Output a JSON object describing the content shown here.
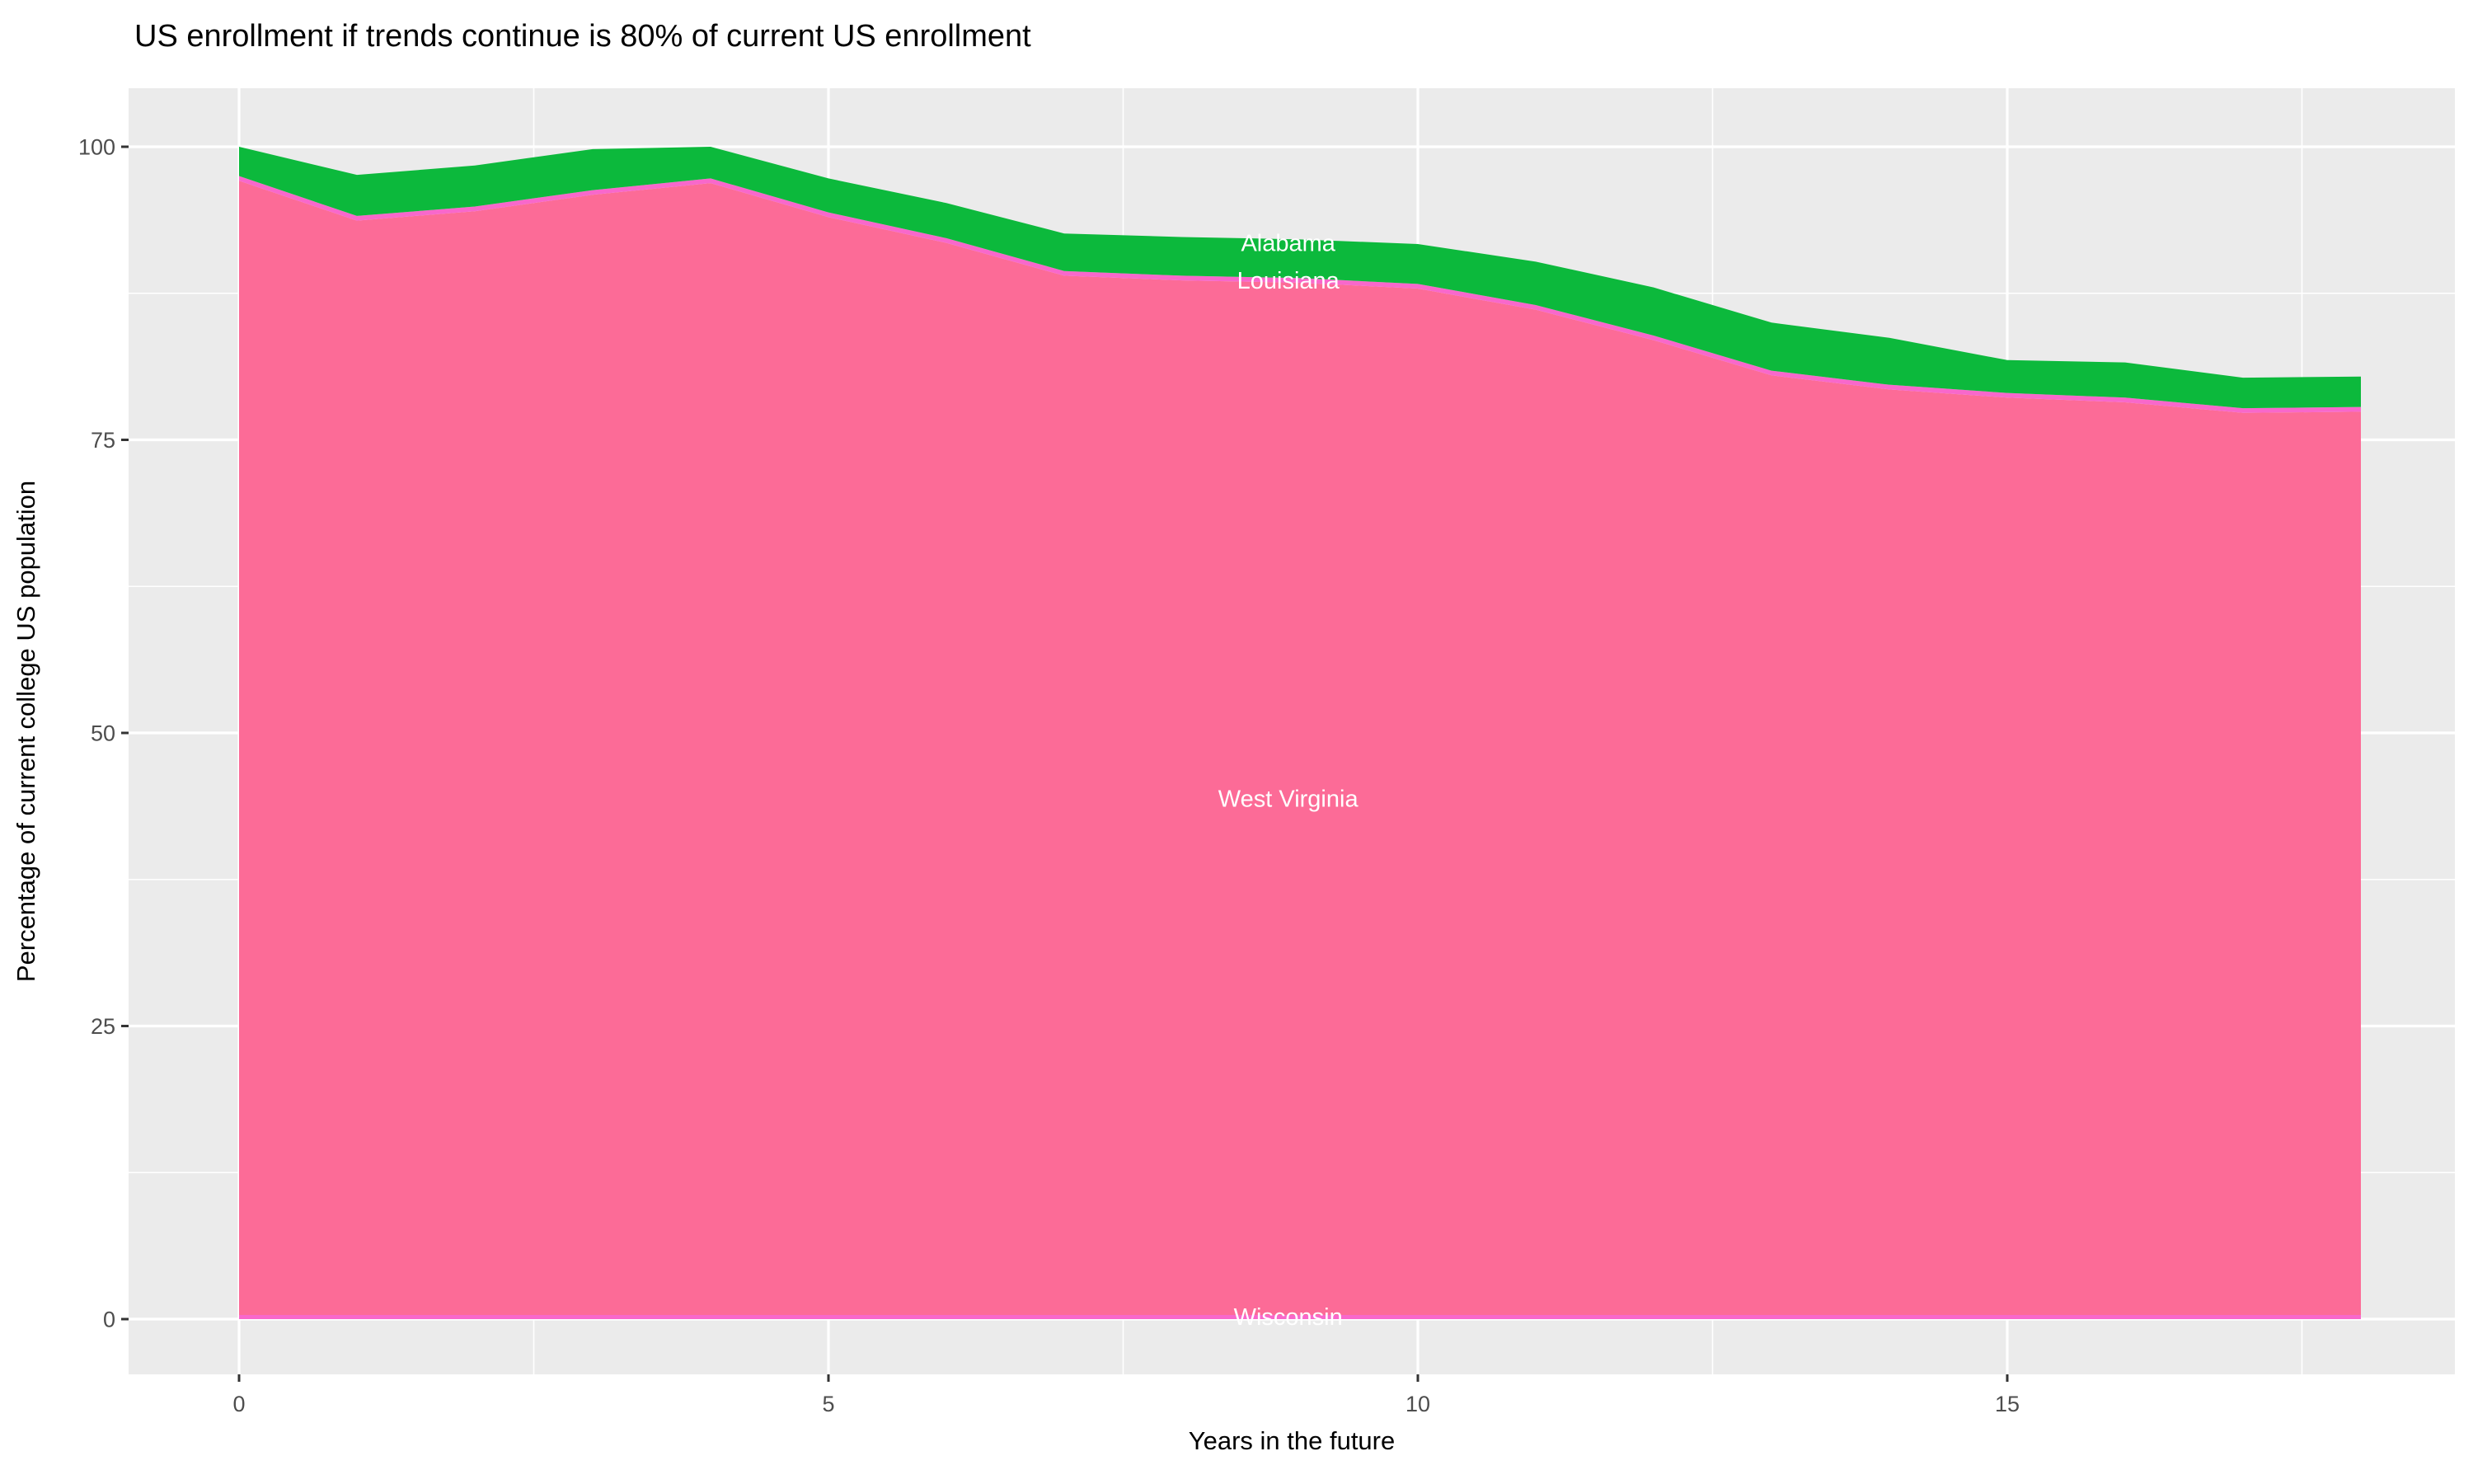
{
  "title": "US enrollment if trends continue is 80% of current US enrollment",
  "chart_data": {
    "type": "area",
    "stacked": true,
    "title": "US enrollment if trends continue is 80% of current US enrollment",
    "xlabel": "Years in the future",
    "ylabel": "Percentage of current college US population",
    "x": [
      0,
      1,
      2,
      3,
      4,
      5,
      6,
      7,
      8,
      9,
      10,
      11,
      12,
      13,
      14,
      15,
      16,
      17,
      18
    ],
    "x_ticks": [
      0,
      5,
      10,
      15
    ],
    "y_ticks": [
      0,
      25,
      50,
      75,
      100
    ],
    "x_minor_ticks": [
      2.5,
      7.5,
      12.5,
      17.5
    ],
    "y_minor_ticks": [
      12.5,
      37.5,
      62.5,
      87.5
    ],
    "xlim": [
      -0.94,
      18.85
    ],
    "ylim": [
      -4.7,
      104.9
    ],
    "grid": true,
    "legend_position": "none",
    "series": [
      {
        "name": "Wisconsin",
        "color": "#F868CB",
        "label": "Wisconsin",
        "label_x": 8.9,
        "label_value": 0.2,
        "values": [
          0.35,
          0.35,
          0.35,
          0.35,
          0.35,
          0.35,
          0.35,
          0.35,
          0.35,
          0.35,
          0.35,
          0.35,
          0.35,
          0.35,
          0.35,
          0.35,
          0.35,
          0.35,
          0.35
        ]
      },
      {
        "name": "West Virginia",
        "color": "#FC6B97",
        "label": "West Virginia",
        "label_x": 8.9,
        "label_value": 44.4,
        "values": [
          96.75,
          93.35,
          94.15,
          95.55,
          96.55,
          93.65,
          91.45,
          88.65,
          88.25,
          88.05,
          87.55,
          85.75,
          83.15,
          80.15,
          78.95,
          78.25,
          77.85,
          76.95,
          77.05
        ]
      },
      {
        "name": "Louisiana",
        "color": "#F868CB",
        "label": "Louisiana",
        "label_x": 8.9,
        "label_value": 88.6,
        "values": [
          0.4,
          0.4,
          0.4,
          0.4,
          0.4,
          0.4,
          0.4,
          0.4,
          0.4,
          0.4,
          0.4,
          0.4,
          0.4,
          0.4,
          0.4,
          0.4,
          0.4,
          0.4,
          0.4
        ]
      },
      {
        "name": "Alabama",
        "color": "#0CB93C",
        "label": "Alabama",
        "label_x": 8.9,
        "label_value": 91.8,
        "values": [
          2.5,
          3.5,
          3.5,
          3.5,
          2.7,
          2.9,
          3.0,
          3.2,
          3.3,
          3.3,
          3.4,
          3.7,
          4.1,
          4.1,
          4.0,
          2.8,
          3.0,
          2.6,
          2.6
        ]
      }
    ],
    "totals": [
      100.0,
      97.6,
      98.4,
      99.8,
      100.0,
      97.3,
      95.2,
      92.6,
      92.3,
      92.1,
      91.7,
      90.2,
      88.0,
      85.0,
      83.7,
      81.8,
      81.6,
      80.3,
      80.4
    ],
    "colors": {
      "panel_background": "#EBEBEB",
      "gridline": "#FFFFFF",
      "tick_mark": "#333333",
      "tick_label": "#4D4D4D",
      "title_text": "#000000"
    }
  }
}
